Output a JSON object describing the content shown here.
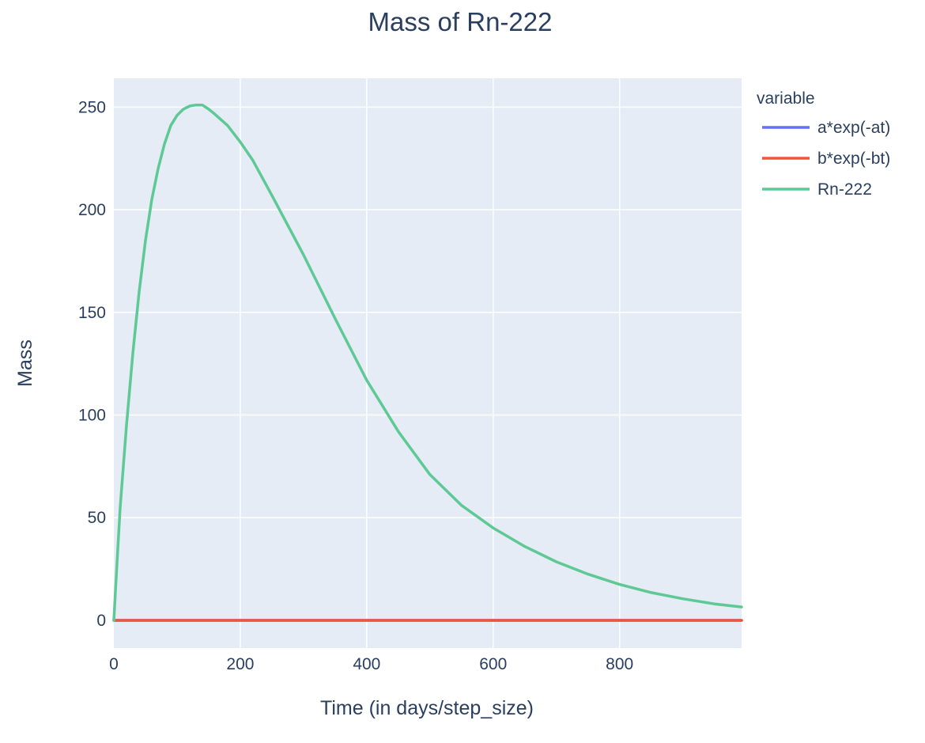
{
  "chart_data": {
    "type": "line",
    "title": "Mass of Rn-222",
    "xlabel": "Time (in days/step_size)",
    "ylabel": "Mass",
    "xlim": [
      0,
      993
    ],
    "ylim": [
      -13.5,
      264
    ],
    "x_ticks": [
      0,
      200,
      400,
      600,
      800
    ],
    "y_ticks": [
      0,
      50,
      100,
      150,
      200,
      250
    ],
    "x_tick_labels": [
      "0",
      "200",
      "400",
      "600",
      "800"
    ],
    "y_tick_labels": [
      "0",
      "50",
      "100",
      "150",
      "200",
      "250"
    ],
    "grid": true,
    "legend": {
      "title": "variable",
      "placement": "right"
    },
    "series": [
      {
        "name": "a*exp(-at)",
        "color": "#636efa",
        "x": [
          0,
          100,
          200,
          300,
          400,
          500,
          600,
          700,
          800,
          900,
          993
        ],
        "y": [
          0,
          0,
          0,
          0,
          0,
          0,
          0,
          0,
          0,
          0,
          0
        ]
      },
      {
        "name": "b*exp(-bt)",
        "color": "#ef553b",
        "x": [
          0,
          100,
          200,
          300,
          400,
          500,
          600,
          700,
          800,
          900,
          993
        ],
        "y": [
          0,
          0,
          0,
          0,
          0,
          0,
          0,
          0,
          0,
          0,
          0
        ]
      },
      {
        "name": "Rn-222",
        "color": "#5ec995",
        "x": [
          0,
          5,
          10,
          20,
          30,
          40,
          50,
          60,
          70,
          80,
          90,
          100,
          110,
          120,
          130,
          140,
          150,
          160,
          180,
          200,
          220,
          250,
          300,
          350,
          400,
          450,
          500,
          550,
          600,
          650,
          700,
          750,
          800,
          850,
          900,
          950,
          993
        ],
        "y": [
          0,
          28,
          55,
          95,
          130,
          160,
          185,
          205,
          220,
          232,
          241,
          246,
          249,
          250.5,
          251,
          251,
          249,
          246.5,
          241,
          233,
          224,
          207,
          178,
          147,
          117,
          92,
          71,
          56,
          45,
          36,
          28.5,
          22.5,
          17.5,
          13.5,
          10.5,
          8,
          6.5
        ]
      }
    ]
  }
}
